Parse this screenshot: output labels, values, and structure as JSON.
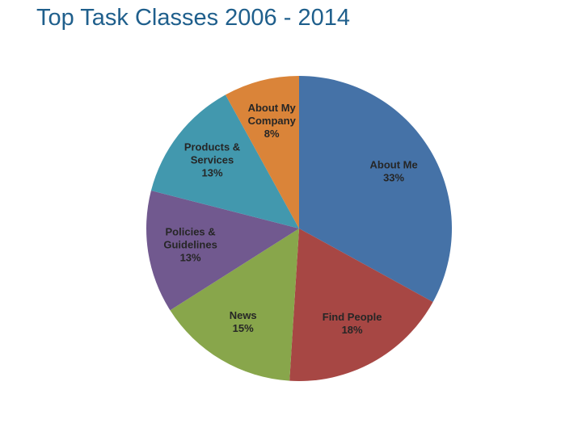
{
  "slide": {
    "title": "Top Task Classes 2006 - 2014"
  },
  "chart_data": {
    "type": "pie",
    "title": "",
    "start_angle_deg": 0,
    "direction": "clockwise",
    "slices": [
      {
        "label_lines": [
          "About Me"
        ],
        "percent_label": "33%",
        "value": 33,
        "color": "#4572a7"
      },
      {
        "label_lines": [
          "Find People"
        ],
        "percent_label": "18%",
        "value": 18,
        "color": "#a74744"
      },
      {
        "label_lines": [
          "News"
        ],
        "percent_label": "15%",
        "value": 15,
        "color": "#88a64b"
      },
      {
        "label_lines": [
          "Policies &",
          "Guidelines"
        ],
        "percent_label": "13%",
        "value": 13,
        "color": "#71598f"
      },
      {
        "label_lines": [
          "Products &",
          "Services"
        ],
        "percent_label": "13%",
        "value": 13,
        "color": "#4298ae"
      },
      {
        "label_lines": [
          "About My",
          "Company"
        ],
        "percent_label": "8%",
        "value": 8,
        "color": "#da8439"
      }
    ]
  }
}
